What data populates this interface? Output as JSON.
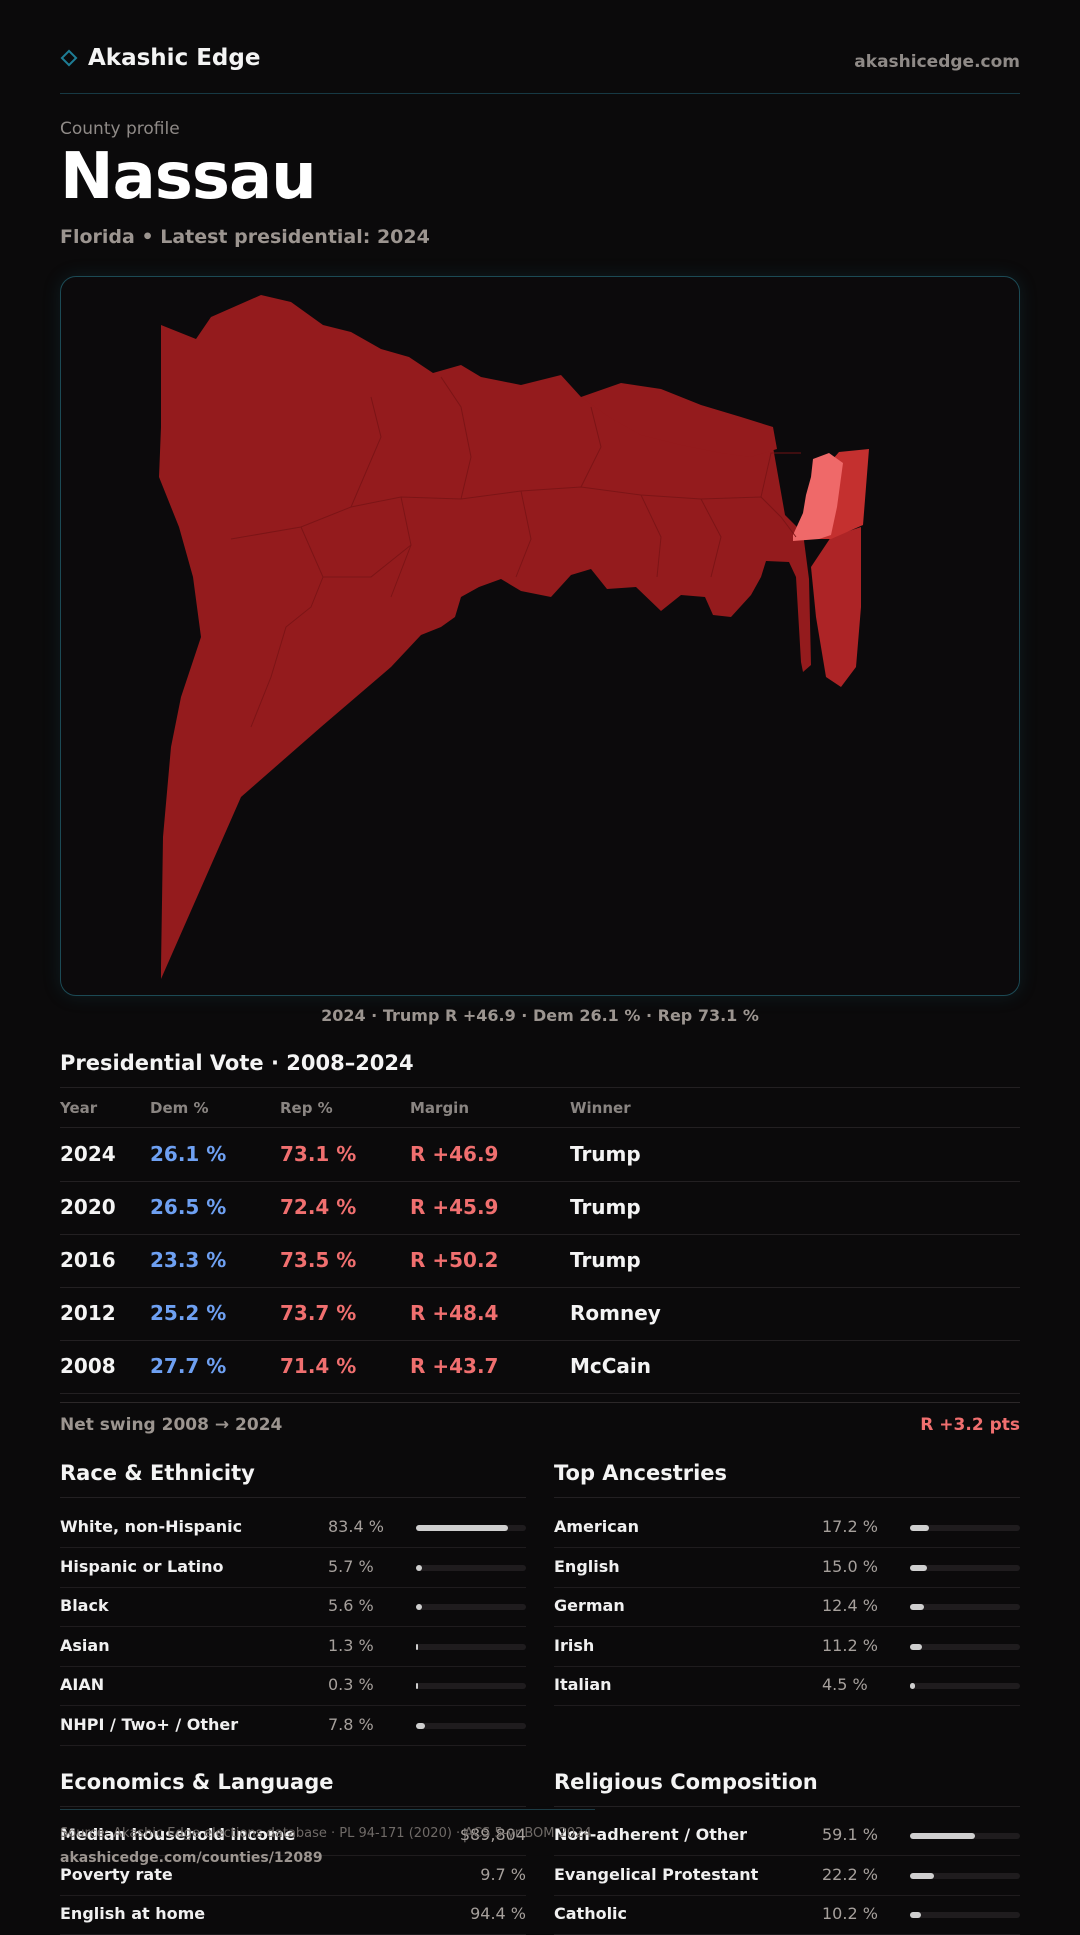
{
  "header": {
    "brand": "Akashic Edge",
    "domain": "akashicedge.com"
  },
  "profile": {
    "eyebrow": "County profile",
    "county": "Nassau",
    "subtitle": "Florida • Latest presidential: 2024"
  },
  "map": {
    "caption": "2024 · Trump R +46.9 · Dem 26.1 % · Rep 73.1 %",
    "colors": {
      "strong_rep": "#941b1d",
      "mid_rep": "#c4302f",
      "light_rep": "#ef6969"
    }
  },
  "vote": {
    "title": "Presidential Vote · 2008–2024",
    "headers": {
      "year": "Year",
      "dem": "Dem %",
      "rep": "Rep %",
      "margin": "Margin",
      "winner": "Winner"
    },
    "rows": [
      {
        "year": "2024",
        "dem": "26.1 %",
        "rep": "73.1 %",
        "margin": "R +46.9",
        "winner": "Trump"
      },
      {
        "year": "2020",
        "dem": "26.5 %",
        "rep": "72.4 %",
        "margin": "R +45.9",
        "winner": "Trump"
      },
      {
        "year": "2016",
        "dem": "23.3 %",
        "rep": "73.5 %",
        "margin": "R +50.2",
        "winner": "Trump"
      },
      {
        "year": "2012",
        "dem": "25.2 %",
        "rep": "73.7 %",
        "margin": "R +48.4",
        "winner": "Romney"
      },
      {
        "year": "2008",
        "dem": "27.7 %",
        "rep": "71.4 %",
        "margin": "R +43.7",
        "winner": "McCain"
      }
    ],
    "swing_label": "Net swing 2008 → 2024",
    "swing_value": "R +3.2 pts"
  },
  "race": {
    "title": "Race & Ethnicity",
    "rows": [
      {
        "label": "White, non-Hispanic",
        "value": "83.4 %",
        "pct": 83.4
      },
      {
        "label": "Hispanic or Latino",
        "value": "5.7 %",
        "pct": 5.7
      },
      {
        "label": "Black",
        "value": "5.6 %",
        "pct": 5.6
      },
      {
        "label": "Asian",
        "value": "1.3 %",
        "pct": 1.3
      },
      {
        "label": "AIAN",
        "value": "0.3 %",
        "pct": 0.3
      },
      {
        "label": "NHPI / Two+ / Other",
        "value": "7.8 %",
        "pct": 7.8
      }
    ]
  },
  "ancestry": {
    "title": "Top Ancestries",
    "rows": [
      {
        "label": "American",
        "value": "17.2 %",
        "pct": 17.2
      },
      {
        "label": "English",
        "value": "15.0 %",
        "pct": 15.0
      },
      {
        "label": "German",
        "value": "12.4 %",
        "pct": 12.4
      },
      {
        "label": "Irish",
        "value": "11.2 %",
        "pct": 11.2
      },
      {
        "label": "Italian",
        "value": "4.5 %",
        "pct": 4.5
      }
    ]
  },
  "economics": {
    "title": "Economics & Language",
    "rows": [
      {
        "label": "Median household income",
        "value": "$89,804"
      },
      {
        "label": "Poverty rate",
        "value": "9.7 %"
      },
      {
        "label": "English at home",
        "value": "94.4 %"
      }
    ]
  },
  "religion": {
    "title": "Religious Composition",
    "rows": [
      {
        "label": "Non-adherent / Other",
        "value": "59.1 %",
        "pct": 59.1
      },
      {
        "label": "Evangelical Protestant",
        "value": "22.2 %",
        "pct": 22.2
      },
      {
        "label": "Catholic",
        "value": "10.2 %",
        "pct": 10.2
      }
    ]
  },
  "footer": {
    "source": "Source: Akashic Edge elections database · PL 94-171 (2020) · ACS 5-yr BOM 2024",
    "url": "akashicedge.com/counties/12089"
  }
}
